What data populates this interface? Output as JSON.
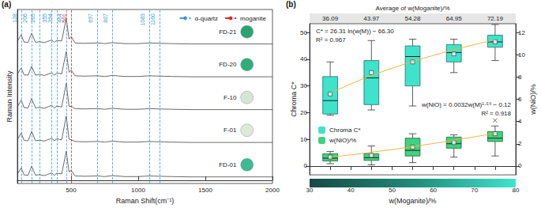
{
  "chart_data": [
    {
      "type": "line",
      "title": "(a)",
      "x_label": "Raman Shift(cm⁻¹)",
      "y_label": "Raman Intensity",
      "xlim": [
        100,
        2000
      ],
      "xticks": [
        500,
        1000,
        1500,
        2000
      ],
      "ylim": [
        -0.1,
        5.2
      ],
      "tick_labels": "x",
      "grid": false,
      "legend": "top right",
      "x": [
        100,
        128,
        150,
        180,
        206,
        235,
        265,
        300,
        355,
        375,
        394,
        430,
        464,
        485,
        501,
        530,
        600,
        697,
        750,
        807,
        900,
        1000,
        1083,
        1160,
        1250,
        1400,
        1600,
        1800,
        2000
      ],
      "series": [
        {
          "name": "FD-21",
          "color": "#444444",
          "values": [
            4.23,
            4.43,
            4.21,
            4.2,
            4.48,
            4.2,
            4.22,
            4.19,
            4.27,
            4.2,
            4.26,
            4.24,
            4.93,
            4.3,
            4.37,
            4.18,
            4.17,
            4.18,
            4.16,
            4.19,
            4.16,
            4.16,
            4.18,
            4.17,
            4.16,
            4.15,
            4.15,
            4.15,
            4.15
          ]
        },
        {
          "name": "FD-20",
          "color": "#444444",
          "values": [
            3.23,
            3.42,
            3.21,
            3.2,
            3.47,
            3.2,
            3.22,
            3.19,
            3.27,
            3.2,
            3.26,
            3.24,
            3.92,
            3.29,
            3.35,
            3.18,
            3.17,
            3.18,
            3.16,
            3.19,
            3.16,
            3.16,
            3.18,
            3.17,
            3.16,
            3.15,
            3.15,
            3.15,
            3.15
          ]
        },
        {
          "name": "F-10",
          "color": "#444444",
          "values": [
            2.23,
            2.44,
            2.21,
            2.2,
            2.49,
            2.2,
            2.22,
            2.19,
            2.28,
            2.2,
            2.26,
            2.23,
            2.95,
            2.25,
            2.25,
            2.18,
            2.17,
            2.18,
            2.16,
            2.19,
            2.16,
            2.16,
            2.18,
            2.17,
            2.16,
            2.15,
            2.15,
            2.15,
            2.15
          ]
        },
        {
          "name": "F-01",
          "color": "#444444",
          "values": [
            1.23,
            1.44,
            1.21,
            1.2,
            1.49,
            1.2,
            1.22,
            1.19,
            1.28,
            1.2,
            1.26,
            1.23,
            1.95,
            1.25,
            1.23,
            1.18,
            1.17,
            1.18,
            1.16,
            1.19,
            1.16,
            1.16,
            1.18,
            1.17,
            1.16,
            1.15,
            1.15,
            1.15,
            1.15
          ]
        },
        {
          "name": "FD-01",
          "color": "#444444",
          "values": [
            0.18,
            0.38,
            0.16,
            0.15,
            0.43,
            0.15,
            0.17,
            0.14,
            0.22,
            0.15,
            0.21,
            0.19,
            0.88,
            0.25,
            0.3,
            0.13,
            0.12,
            0.13,
            0.11,
            0.14,
            0.11,
            0.11,
            0.13,
            0.12,
            0.11,
            0.1,
            0.1,
            0.1,
            0.1
          ]
        },
        {
          "name": "α-quartz",
          "type": "vline",
          "color": "#3a9ad9",
          "line_style": "dashed",
          "x": [
            128,
            206,
            265,
            355,
            394,
            464,
            697,
            807,
            1083,
            1160
          ]
        },
        {
          "name": "moganite",
          "type": "vline",
          "color": "#d62728",
          "line_style": "dashed",
          "x": [
            501
          ]
        }
      ]
    },
    {
      "type": "boxplot",
      "title": "(b)",
      "x_label": "w(Moganite)/%",
      "y_label": "Chroma C*",
      "y2_label": "w(NiO)/%",
      "xlim": [
        30,
        80
      ],
      "xticks": [
        30,
        40,
        50,
        60,
        70,
        80
      ],
      "ylim": [
        -3.3,
        53.3
      ],
      "yticks": [
        0,
        10,
        20,
        30,
        40,
        50
      ],
      "y2lim": [
        -0.8,
        12.8
      ],
      "y2ticks": [
        0,
        2,
        4,
        6,
        8,
        10,
        12
      ],
      "top_axis": {
        "label": "Average of w(Moganite)/%",
        "ticks": [
          {
            "value": 35,
            "label": "36.09"
          },
          {
            "value": 45,
            "label": "43.97"
          },
          {
            "value": 55,
            "label": "54.28"
          },
          {
            "value": 65,
            "label": "64.95"
          },
          {
            "value": 75,
            "label": "72.19"
          }
        ]
      },
      "legend": "left",
      "grid": false,
      "series": [
        {
          "name": "Chroma C*",
          "type": "boxplot",
          "color": "#3fe3cc",
          "x": [
            35,
            45,
            55,
            65,
            75
          ],
          "min": [
            19,
            21,
            22.5,
            35,
            39.5
          ],
          "q1": [
            19.5,
            23,
            30,
            39,
            44.5
          ],
          "median": [
            24.5,
            33,
            41,
            42.5,
            46.5
          ],
          "q3": [
            33.5,
            39.5,
            45,
            45.5,
            49
          ],
          "max": [
            39,
            47,
            47.5,
            47.5,
            53
          ],
          "mean": [
            27,
            35,
            39,
            42,
            46.5
          ]
        },
        {
          "name": "w(NiO)/%",
          "type": "boxplot",
          "axis": "y2",
          "color": "#3fd27f",
          "x": [
            35,
            45,
            55,
            65,
            75
          ],
          "min": [
            0.2,
            0.1,
            0.3,
            0.8,
            0.9
          ],
          "q1": [
            0.45,
            0.5,
            0.9,
            1.6,
            2.2
          ],
          "median": [
            0.7,
            0.75,
            1.4,
            2.0,
            2.5
          ],
          "q3": [
            1.1,
            1.1,
            2.5,
            2.6,
            3.1
          ],
          "max": [
            1.3,
            1.8,
            2.9,
            2.8,
            3.6
          ],
          "mean": [
            0.8,
            0.95,
            1.7,
            2.1,
            2.9
          ],
          "outliers": [
            [
              75,
              4.1
            ]
          ]
        },
        {
          "type": "line",
          "color": "#f2b134",
          "x": [
            35,
            40,
            45,
            50,
            55,
            60,
            65,
            70,
            75
          ],
          "values": [
            27.26,
            30.75,
            33.86,
            36.62,
            39.1,
            41.42,
            43.5,
            45.48,
            47.3
          ]
        },
        {
          "type": "line",
          "axis": "y2",
          "color": "#f2b134",
          "x": [
            35,
            40,
            45,
            50,
            55,
            60,
            65,
            70,
            75
          ],
          "values": [
            0.79,
            1.0,
            1.24,
            1.48,
            1.75,
            2.02,
            2.32,
            2.62,
            2.94
          ]
        }
      ],
      "annotations": [
        {
          "text": "C* = 26.31 ln(w(M)) − 66.30"
        },
        {
          "text": "R² = 0.967"
        },
        {
          "text": "w(NiO) = 0.0032w(M)¹·⁵⁹ − 0.12"
        },
        {
          "text": "R² = 0.918"
        }
      ]
    }
  ]
}
